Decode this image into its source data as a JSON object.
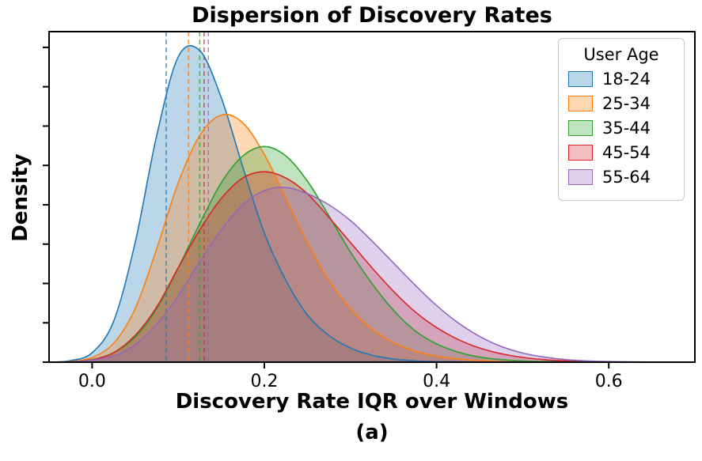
{
  "figure": {
    "title": "Dispersion of Discovery Rates",
    "xlabel": "Discovery Rate IQR over Windows",
    "ylabel": "Density",
    "caption": "(a)"
  },
  "chart_data": {
    "type": "area",
    "subtype": "kde-density",
    "title": "Dispersion of Discovery Rates",
    "xlabel": "Discovery Rate IQR over Windows",
    "ylabel": "Density",
    "caption": "(a)",
    "grid": false,
    "xlim": [
      -0.05,
      0.7
    ],
    "ylim": [
      0,
      1.05
    ],
    "x_ticks": [
      0.0,
      0.2,
      0.4,
      0.6
    ],
    "x_tick_labels": [
      "0.0",
      "0.2",
      "0.4",
      "0.6"
    ],
    "y_tick_values": [
      0,
      0.125,
      0.25,
      0.375,
      0.5,
      0.625,
      0.75,
      0.875,
      1.0
    ],
    "legend": {
      "title": "User Age",
      "position": "upper right"
    },
    "x": [
      -0.05,
      -0.025,
      0,
      0.025,
      0.05,
      0.075,
      0.1,
      0.125,
      0.15,
      0.175,
      0.2,
      0.225,
      0.25,
      0.275,
      0.3,
      0.325,
      0.35,
      0.375,
      0.4,
      0.425,
      0.45,
      0.475,
      0.5,
      0.525,
      0.55,
      0.575,
      0.6,
      0.625,
      0.65
    ],
    "series": [
      {
        "name": "18-24",
        "color": "#1f77b4",
        "median_line": 0.086,
        "y": [
          0,
          0.005,
          0.03,
          0.13,
          0.38,
          0.72,
          0.97,
          0.99,
          0.84,
          0.62,
          0.41,
          0.26,
          0.15,
          0.085,
          0.045,
          0.022,
          0.01,
          0.004,
          0.002,
          0.001,
          0,
          0,
          0,
          0,
          0,
          0,
          0,
          0,
          0
        ]
      },
      {
        "name": "25-34",
        "color": "#ff7f0e",
        "median_line": 0.112,
        "y": [
          0,
          0.002,
          0.015,
          0.06,
          0.17,
          0.36,
          0.57,
          0.72,
          0.785,
          0.76,
          0.66,
          0.52,
          0.38,
          0.26,
          0.17,
          0.105,
          0.062,
          0.035,
          0.019,
          0.01,
          0.005,
          0.002,
          0.001,
          0,
          0,
          0,
          0,
          0,
          0
        ]
      },
      {
        "name": "35-44",
        "color": "#2ca02c",
        "median_line": 0.125,
        "y": [
          0,
          0.001,
          0.008,
          0.03,
          0.08,
          0.17,
          0.3,
          0.44,
          0.57,
          0.655,
          0.685,
          0.655,
          0.575,
          0.465,
          0.35,
          0.25,
          0.165,
          0.1,
          0.058,
          0.032,
          0.016,
          0.008,
          0.004,
          0.002,
          0.001,
          0,
          0,
          0,
          0
        ]
      },
      {
        "name": "45-54",
        "color": "#d62728",
        "median_line": 0.13,
        "y": [
          0,
          0.001,
          0.008,
          0.03,
          0.085,
          0.175,
          0.3,
          0.42,
          0.52,
          0.585,
          0.605,
          0.585,
          0.535,
          0.46,
          0.38,
          0.3,
          0.225,
          0.16,
          0.11,
          0.072,
          0.045,
          0.027,
          0.015,
          0.008,
          0.004,
          0.002,
          0.001,
          0,
          0
        ]
      },
      {
        "name": "55-64",
        "color": "#9467bd",
        "median_line": 0.135,
        "y": [
          0,
          0.001,
          0.006,
          0.02,
          0.055,
          0.12,
          0.21,
          0.32,
          0.42,
          0.5,
          0.545,
          0.555,
          0.535,
          0.5,
          0.45,
          0.385,
          0.315,
          0.245,
          0.18,
          0.125,
          0.082,
          0.05,
          0.029,
          0.016,
          0.008,
          0.004,
          0.002,
          0.001,
          0
        ]
      }
    ],
    "style": {
      "fill_alpha": 0.3,
      "line_width": 1.6,
      "axis_color": "#000000"
    }
  }
}
